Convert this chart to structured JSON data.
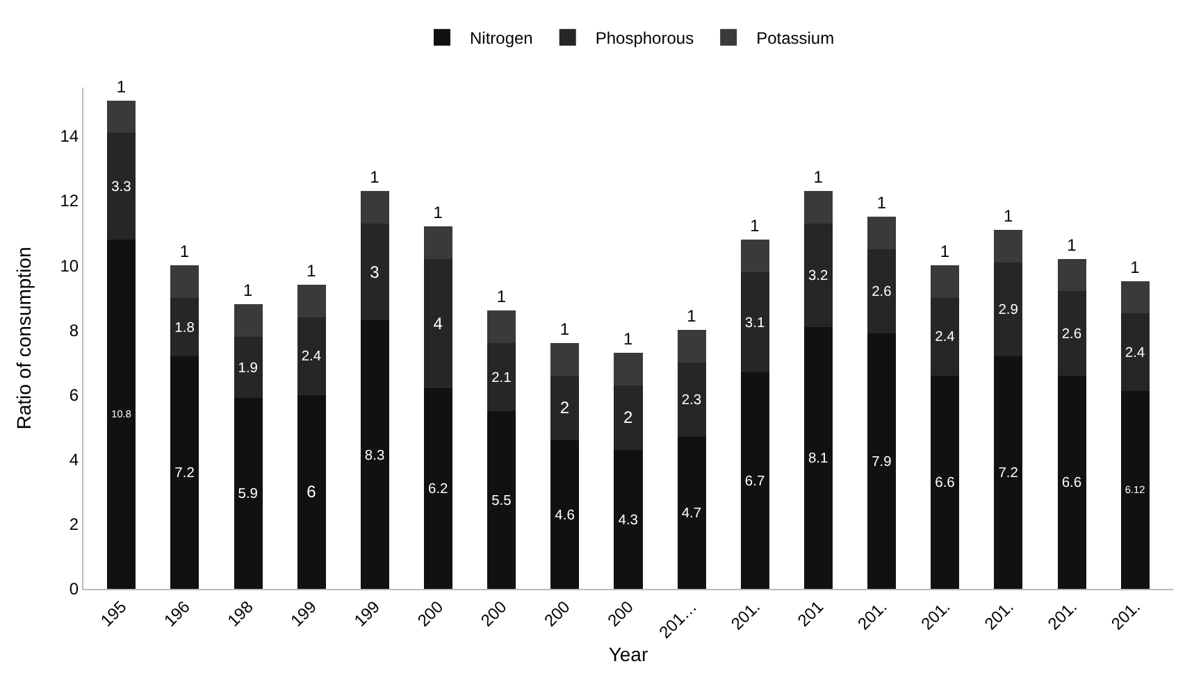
{
  "chart_data": {
    "type": "bar",
    "stacked": true,
    "xlabel": "Year",
    "ylabel": "Ratio of consumption",
    "categories": [
      "195",
      "196",
      "198",
      "199",
      "199",
      "200",
      "200",
      "200",
      "200",
      "201…",
      "201.",
      "201",
      "201.",
      "201.",
      "201.",
      "201.",
      "201."
    ],
    "series": [
      {
        "name": "Nitrogen",
        "color": "#111111",
        "values": [
          10.8,
          7.2,
          5.9,
          6,
          8.3,
          6.2,
          5.5,
          4.6,
          4.3,
          4.7,
          6.7,
          8.1,
          7.9,
          6.6,
          7.2,
          6.6,
          6.12
        ]
      },
      {
        "name": "Phosphorous",
        "color": "#262626",
        "values": [
          3.3,
          1.8,
          1.9,
          2.4,
          3,
          4,
          2.1,
          2,
          2,
          2.3,
          3.1,
          3.2,
          2.6,
          2.4,
          2.9,
          2.6,
          2.4
        ]
      },
      {
        "name": "Potassium",
        "color": "#3a3a3a",
        "values": [
          1,
          1,
          1,
          1,
          1,
          1,
          1,
          1,
          1,
          1,
          1,
          1,
          1,
          1,
          1,
          1,
          1
        ]
      }
    ],
    "ylim": [
      0,
      15.5
    ],
    "yticks": [
      0,
      2,
      4,
      6,
      8,
      10,
      12,
      14
    ],
    "grid": false,
    "legend": "top",
    "data_labels": true
  }
}
